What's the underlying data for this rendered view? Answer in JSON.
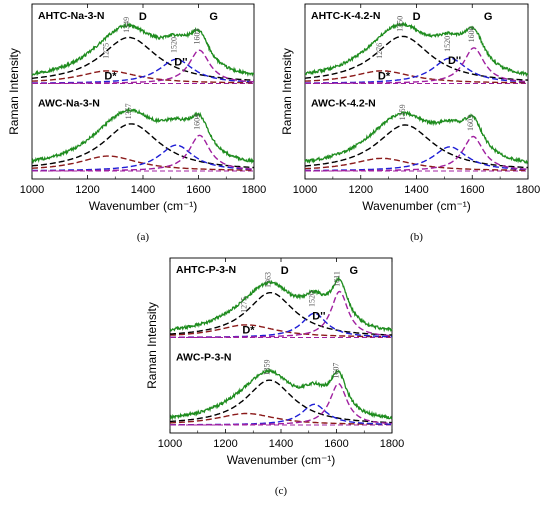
{
  "colors": {
    "measured": "#1e8c1e",
    "D": "#000000",
    "D_star": "#8b1a1a",
    "D_double": "#1f1fd6",
    "G": "#a020a0",
    "baseline": "#a020a0"
  },
  "chart_data": [
    {
      "type": "line",
      "panel_label": "(a)",
      "xlabel": "Wavenumber (cm⁻¹)",
      "ylabel": "Raman Intensity",
      "xlim": [
        1000,
        1800
      ],
      "xticks": [
        1000,
        1200,
        1400,
        1600,
        1800
      ],
      "traces": [
        {
          "name": "AHTC-Na-3-N",
          "peaks": [
            {
              "band": "D*",
              "center": 1275,
              "height": 0.22,
              "fwhm": 260,
              "shows_position": true
            },
            {
              "band": "D",
              "center": 1349,
              "height": 0.8,
              "fwhm": 250,
              "shows_position": true
            },
            {
              "band": "D''",
              "center": 1520,
              "height": 0.42,
              "fwhm": 150,
              "shows_position": true
            },
            {
              "band": "G",
              "center": 1603,
              "height": 0.58,
              "fwhm": 90,
              "shows_position": true
            }
          ]
        },
        {
          "name": "AWC-Na-3-N",
          "peaks": [
            {
              "band": "D*",
              "center": 1275,
              "height": 0.26,
              "fwhm": 260,
              "shows_position": false
            },
            {
              "band": "D",
              "center": 1357,
              "height": 0.82,
              "fwhm": 250,
              "shows_position": true
            },
            {
              "band": "D''",
              "center": 1520,
              "height": 0.45,
              "fwhm": 150,
              "shows_position": false
            },
            {
              "band": "G",
              "center": 1604,
              "height": 0.62,
              "fwhm": 90,
              "shows_position": true
            }
          ]
        }
      ]
    },
    {
      "type": "line",
      "panel_label": "(b)",
      "xlabel": "Wavenumber (cm⁻¹)",
      "ylabel": "Raman Intensity",
      "xlim": [
        1000,
        1800
      ],
      "xticks": [
        1000,
        1200,
        1400,
        1600,
        1800
      ],
      "traces": [
        {
          "name": "AHTC-K-4.2-N",
          "peaks": [
            {
              "band": "D*",
              "center": 1276,
              "height": 0.22,
              "fwhm": 260,
              "shows_position": true
            },
            {
              "band": "D",
              "center": 1350,
              "height": 0.82,
              "fwhm": 250,
              "shows_position": true
            },
            {
              "band": "D''",
              "center": 1520,
              "height": 0.44,
              "fwhm": 150,
              "shows_position": true
            },
            {
              "band": "G",
              "center": 1606,
              "height": 0.62,
              "fwhm": 90,
              "shows_position": true
            }
          ]
        },
        {
          "name": "AWC-K-4.2-N",
          "peaks": [
            {
              "band": "D*",
              "center": 1276,
              "height": 0.22,
              "fwhm": 260,
              "shows_position": false
            },
            {
              "band": "D",
              "center": 1359,
              "height": 0.8,
              "fwhm": 250,
              "shows_position": true
            },
            {
              "band": "D''",
              "center": 1520,
              "height": 0.42,
              "fwhm": 150,
              "shows_position": false
            },
            {
              "band": "G",
              "center": 1603,
              "height": 0.6,
              "fwhm": 90,
              "shows_position": true
            }
          ]
        }
      ]
    },
    {
      "type": "line",
      "panel_label": "(c)",
      "xlabel": "Wavenumber (cm⁻¹)",
      "ylabel": "Raman Intensity",
      "xlim": [
        1000,
        1800
      ],
      "xticks": [
        1000,
        1200,
        1400,
        1600,
        1800
      ],
      "traces": [
        {
          "name": "AHTC-P-3-N",
          "peaks": [
            {
              "band": "D*",
              "center": 1275,
              "height": 0.22,
              "fwhm": 260,
              "shows_position": true
            },
            {
              "band": "D",
              "center": 1363,
              "height": 0.78,
              "fwhm": 210,
              "shows_position": true
            },
            {
              "band": "D''",
              "center": 1520,
              "height": 0.42,
              "fwhm": 110,
              "shows_position": true
            },
            {
              "band": "G",
              "center": 1611,
              "height": 0.8,
              "fwhm": 75,
              "shows_position": true
            }
          ]
        },
        {
          "name": "AWC-P-3-N",
          "peaks": [
            {
              "band": "D*",
              "center": 1275,
              "height": 0.2,
              "fwhm": 260,
              "shows_position": false
            },
            {
              "band": "D",
              "center": 1359,
              "height": 0.78,
              "fwhm": 210,
              "shows_position": true
            },
            {
              "band": "D''",
              "center": 1520,
              "height": 0.36,
              "fwhm": 110,
              "shows_position": false
            },
            {
              "band": "G",
              "center": 1607,
              "height": 0.72,
              "fwhm": 75,
              "shows_position": true
            }
          ]
        }
      ]
    }
  ]
}
